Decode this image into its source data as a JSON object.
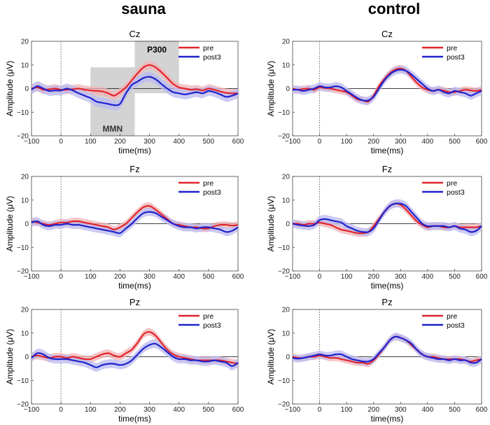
{
  "figure": {
    "column_titles": [
      "sauna",
      "control"
    ]
  },
  "colors": {
    "pre": "#e3242b",
    "post3": "#1f22cc",
    "pre_band": "#f2b3b6",
    "post3_band": "#b9b9f0",
    "window": "#d3d3d3"
  },
  "chart_data": [
    {
      "type": "line",
      "group": "sauna",
      "title": "Cz",
      "xlabel": "time(ms)",
      "ylabel": "Amplitude (μV)",
      "xlim": [
        -100,
        600
      ],
      "ylim": [
        -20,
        20
      ],
      "xticks": [
        -100,
        0,
        100,
        200,
        300,
        400,
        500,
        600
      ],
      "yticks": [
        -20,
        -10,
        0,
        10,
        20
      ],
      "legend": [
        "pre",
        "post3"
      ],
      "legend_position": "top-right",
      "windows": [
        {
          "label": "MMN",
          "x0": 100,
          "x1": 250,
          "label_side": "bottom"
        },
        {
          "label": "P300",
          "x0": 250,
          "x1": 400,
          "label_side": "top"
        }
      ],
      "x": [
        -100,
        -80,
        -60,
        -40,
        -20,
        0,
        20,
        40,
        60,
        80,
        100,
        120,
        140,
        160,
        180,
        200,
        220,
        240,
        260,
        280,
        300,
        320,
        340,
        360,
        380,
        400,
        420,
        440,
        460,
        480,
        500,
        520,
        540,
        560,
        580,
        600
      ],
      "series": [
        {
          "name": "pre",
          "values": [
            0,
            0.5,
            -0.5,
            -0.3,
            0,
            -0.5,
            -0.5,
            -0.3,
            0,
            -0.5,
            -0.8,
            -1.0,
            -1.2,
            -2.0,
            -3.0,
            -1.5,
            0.5,
            3.5,
            6.5,
            9.0,
            10.0,
            9.0,
            7.0,
            4.5,
            2.0,
            0.5,
            0,
            -0.5,
            -0.3,
            -0.8,
            0,
            -0.5,
            -1.2,
            -1.8,
            -2.0,
            -2.0
          ]
        },
        {
          "name": "post3",
          "values": [
            -0.5,
            1.0,
            0,
            -1.0,
            -0.8,
            -0.8,
            0,
            -0.8,
            -2.0,
            -3.0,
            -4.0,
            -5.5,
            -6.0,
            -6.5,
            -7.0,
            -6.5,
            -2.0,
            1.5,
            3.0,
            4.5,
            5.0,
            4.0,
            2.0,
            0,
            -1.5,
            -2.0,
            -2.5,
            -2.0,
            -1.5,
            -2.0,
            -1.0,
            -1.5,
            -2.5,
            -3.5,
            -3.0,
            -2.0
          ]
        }
      ]
    },
    {
      "type": "line",
      "group": "control",
      "title": "Cz",
      "xlabel": "time(ms)",
      "ylabel": "Amplitude (μV)",
      "xlim": [
        -100,
        600
      ],
      "ylim": [
        -20,
        20
      ],
      "xticks": [
        -100,
        0,
        100,
        200,
        300,
        400,
        500,
        600
      ],
      "yticks": [
        -20,
        -10,
        0,
        10,
        20
      ],
      "legend": [
        "pre",
        "post3"
      ],
      "legend_position": "top-right",
      "x": [
        -100,
        -80,
        -60,
        -40,
        -20,
        0,
        20,
        40,
        60,
        80,
        100,
        120,
        140,
        160,
        180,
        200,
        220,
        240,
        260,
        280,
        300,
        320,
        340,
        360,
        380,
        400,
        420,
        440,
        460,
        480,
        500,
        520,
        540,
        560,
        580,
        600
      ],
      "series": [
        {
          "name": "pre",
          "values": [
            0,
            -0.5,
            -0.2,
            0,
            -0.5,
            0.5,
            0.2,
            0,
            -0.5,
            -1.0,
            -1.5,
            -3.0,
            -4.5,
            -5.0,
            -5.5,
            -3.0,
            1.0,
            4.0,
            6.5,
            8.0,
            8.5,
            7.5,
            5.0,
            2.5,
            0.5,
            -0.5,
            -1.0,
            -0.5,
            -0.8,
            -1.5,
            -1.5,
            -1.0,
            -0.5,
            -0.8,
            -1.0,
            -0.5
          ]
        },
        {
          "name": "post3",
          "values": [
            -0.5,
            -0.5,
            -1.0,
            -0.5,
            0,
            1.0,
            0.5,
            0.5,
            1.0,
            0.5,
            -1.0,
            -2.5,
            -4.0,
            -5.0,
            -5.0,
            -3.5,
            0,
            3.5,
            6.0,
            7.5,
            8.0,
            7.5,
            6.0,
            4.0,
            2.0,
            0,
            -1.0,
            -0.5,
            -1.5,
            -2.0,
            -1.0,
            -1.5,
            -2.0,
            -3.0,
            -2.0,
            -1.0
          ]
        }
      ]
    },
    {
      "type": "line",
      "group": "sauna",
      "title": "Fz",
      "xlabel": "time(ms)",
      "ylabel": "Amplitude (μV)",
      "xlim": [
        -100,
        600
      ],
      "ylim": [
        -20,
        20
      ],
      "xticks": [
        -100,
        0,
        100,
        200,
        300,
        400,
        500,
        600
      ],
      "yticks": [
        -20,
        -10,
        0,
        10,
        20
      ],
      "legend": [
        "pre",
        "post3"
      ],
      "legend_position": "top-right",
      "x": [
        -100,
        -80,
        -60,
        -40,
        -20,
        0,
        20,
        40,
        60,
        80,
        100,
        120,
        140,
        160,
        180,
        200,
        220,
        240,
        260,
        280,
        300,
        320,
        340,
        360,
        380,
        400,
        420,
        440,
        460,
        480,
        500,
        520,
        540,
        560,
        580,
        600
      ],
      "series": [
        {
          "name": "pre",
          "values": [
            1.0,
            0.5,
            0,
            -0.5,
            0,
            0.5,
            0.5,
            1.0,
            1.0,
            0.5,
            0,
            -0.5,
            -1.0,
            -1.5,
            -2.5,
            -1.5,
            0,
            2.5,
            5.0,
            7.0,
            7.5,
            6.0,
            4.0,
            2.0,
            0,
            -0.5,
            -1.0,
            -1.5,
            -1.5,
            -2.0,
            -2.0,
            -1.0,
            -0.5,
            -0.5,
            -0.8,
            -0.5
          ]
        },
        {
          "name": "post3",
          "values": [
            0.5,
            1.0,
            -0.5,
            -1.0,
            -0.5,
            -0.5,
            0,
            -0.5,
            -0.5,
            -1.0,
            -1.5,
            -2.0,
            -2.5,
            -3.0,
            -3.5,
            -4.0,
            -2.0,
            0,
            2.5,
            4.5,
            5.0,
            4.5,
            3.0,
            1.5,
            0,
            -1.0,
            -1.5,
            -1.5,
            -2.0,
            -1.5,
            -1.5,
            -2.0,
            -2.5,
            -3.5,
            -3.0,
            -1.5
          ]
        }
      ]
    },
    {
      "type": "line",
      "group": "control",
      "title": "Fz",
      "xlabel": "time(ms)",
      "ylabel": "Amplitude (μV)",
      "xlim": [
        -100,
        600
      ],
      "ylim": [
        -20,
        20
      ],
      "xticks": [
        -100,
        0,
        100,
        200,
        300,
        400,
        500,
        600
      ],
      "yticks": [
        -20,
        -10,
        0,
        10,
        20
      ],
      "legend": [
        "pre",
        "post3"
      ],
      "legend_position": "top-right",
      "x": [
        -100,
        -80,
        -60,
        -40,
        -20,
        0,
        20,
        40,
        60,
        80,
        100,
        120,
        140,
        160,
        180,
        200,
        220,
        240,
        260,
        280,
        300,
        320,
        340,
        360,
        380,
        400,
        420,
        440,
        460,
        480,
        500,
        520,
        540,
        560,
        580,
        600
      ],
      "series": [
        {
          "name": "pre",
          "values": [
            0,
            0,
            -0.5,
            0,
            0,
            0.5,
            0,
            -0.5,
            -1.5,
            -2.5,
            -3.0,
            -3.5,
            -4.0,
            -4.0,
            -3.5,
            -1.0,
            2.0,
            5.0,
            7.5,
            8.5,
            8.0,
            6.0,
            3.5,
            1.0,
            -0.5,
            -1.5,
            -1.0,
            -1.0,
            -1.5,
            -1.5,
            -1.0,
            -1.5,
            -1.5,
            -1.5,
            -1.5,
            -1.0
          ]
        },
        {
          "name": "post3",
          "values": [
            0,
            -0.5,
            -0.8,
            -1.0,
            -0.5,
            1.5,
            2.0,
            1.5,
            1.0,
            0.5,
            -1.0,
            -2.0,
            -3.0,
            -3.5,
            -3.5,
            -2.0,
            1.5,
            5.0,
            7.5,
            8.5,
            8.5,
            7.5,
            5.0,
            2.5,
            0,
            -1.0,
            -1.0,
            -1.0,
            -1.0,
            -1.5,
            -1.0,
            -2.0,
            -2.5,
            -3.5,
            -3.0,
            -1.0
          ]
        }
      ]
    },
    {
      "type": "line",
      "group": "sauna",
      "title": "Pz",
      "xlabel": "time(ms)",
      "ylabel": "Amplitude (μV)",
      "xlim": [
        -100,
        600
      ],
      "ylim": [
        -20,
        20
      ],
      "xticks": [
        -100,
        0,
        100,
        200,
        300,
        400,
        500,
        600
      ],
      "yticks": [
        -20,
        -10,
        0,
        10,
        20
      ],
      "legend": [
        "pre",
        "post3"
      ],
      "legend_position": "top-right",
      "x": [
        -100,
        -80,
        -60,
        -40,
        -20,
        0,
        20,
        40,
        60,
        80,
        100,
        120,
        140,
        160,
        180,
        200,
        220,
        240,
        260,
        280,
        300,
        320,
        340,
        360,
        380,
        400,
        420,
        440,
        460,
        480,
        500,
        520,
        540,
        560,
        580,
        600
      ],
      "series": [
        {
          "name": "pre",
          "values": [
            0,
            0.5,
            0,
            -0.5,
            0,
            0,
            -0.5,
            0,
            -0.5,
            -1.0,
            -1.0,
            0,
            1.0,
            1.5,
            0.5,
            0,
            1.5,
            3.0,
            6.0,
            9.5,
            10.5,
            9.0,
            6.0,
            3.0,
            1.0,
            0,
            -0.5,
            -1.0,
            -1.5,
            -1.5,
            -1.5,
            -1.5,
            -1.5,
            -2.0,
            -2.5,
            -3.0
          ]
        },
        {
          "name": "post3",
          "values": [
            -0.5,
            1.5,
            1.0,
            -0.5,
            -1.0,
            -1.0,
            -1.0,
            -1.5,
            -2.0,
            -2.5,
            -3.5,
            -4.5,
            -3.5,
            -3.0,
            -3.0,
            -3.5,
            -3.0,
            -1.5,
            1.0,
            3.5,
            5.0,
            5.5,
            4.0,
            2.0,
            0,
            -1.0,
            -1.0,
            -1.5,
            -1.5,
            -2.0,
            -2.0,
            -1.5,
            -2.0,
            -2.5,
            -4.0,
            -2.5
          ]
        }
      ]
    },
    {
      "type": "line",
      "group": "control",
      "title": "Pz",
      "xlabel": "time(ms)",
      "ylabel": "Amplitude (μV)",
      "xlim": [
        -100,
        600
      ],
      "ylim": [
        -20,
        20
      ],
      "xticks": [
        -100,
        0,
        100,
        200,
        300,
        400,
        500,
        600
      ],
      "yticks": [
        -20,
        -10,
        0,
        10,
        20
      ],
      "legend": [
        "pre",
        "post3"
      ],
      "legend_position": "top-right",
      "x": [
        -100,
        -80,
        -60,
        -40,
        -20,
        0,
        20,
        40,
        60,
        80,
        100,
        120,
        140,
        160,
        180,
        200,
        220,
        240,
        260,
        280,
        300,
        320,
        340,
        360,
        380,
        400,
        420,
        440,
        460,
        480,
        500,
        520,
        540,
        560,
        580,
        600
      ],
      "series": [
        {
          "name": "pre",
          "values": [
            0,
            -0.5,
            -0.5,
            0,
            0,
            0.5,
            0,
            -0.5,
            -0.5,
            -1.0,
            -1.5,
            -2.0,
            -2.5,
            -2.5,
            -3.0,
            -1.5,
            1.0,
            4.0,
            7.0,
            8.5,
            8.0,
            7.0,
            5.0,
            3.0,
            1.0,
            0,
            0,
            -0.5,
            -1.0,
            -1.0,
            -1.0,
            -1.0,
            -1.5,
            -2.0,
            -1.5,
            -1.0
          ]
        },
        {
          "name": "post3",
          "values": [
            -0.5,
            -0.8,
            -0.5,
            0,
            0.5,
            1.0,
            0.5,
            0.5,
            1.0,
            1.0,
            0,
            -1.0,
            -1.5,
            -2.0,
            -2.0,
            -1.0,
            1.5,
            4.0,
            7.0,
            8.5,
            8.0,
            7.0,
            5.5,
            3.0,
            1.0,
            0,
            -0.5,
            -1.0,
            -1.0,
            -1.5,
            -1.0,
            -1.5,
            -1.5,
            -2.5,
            -2.5,
            -1.0
          ]
        }
      ]
    }
  ]
}
